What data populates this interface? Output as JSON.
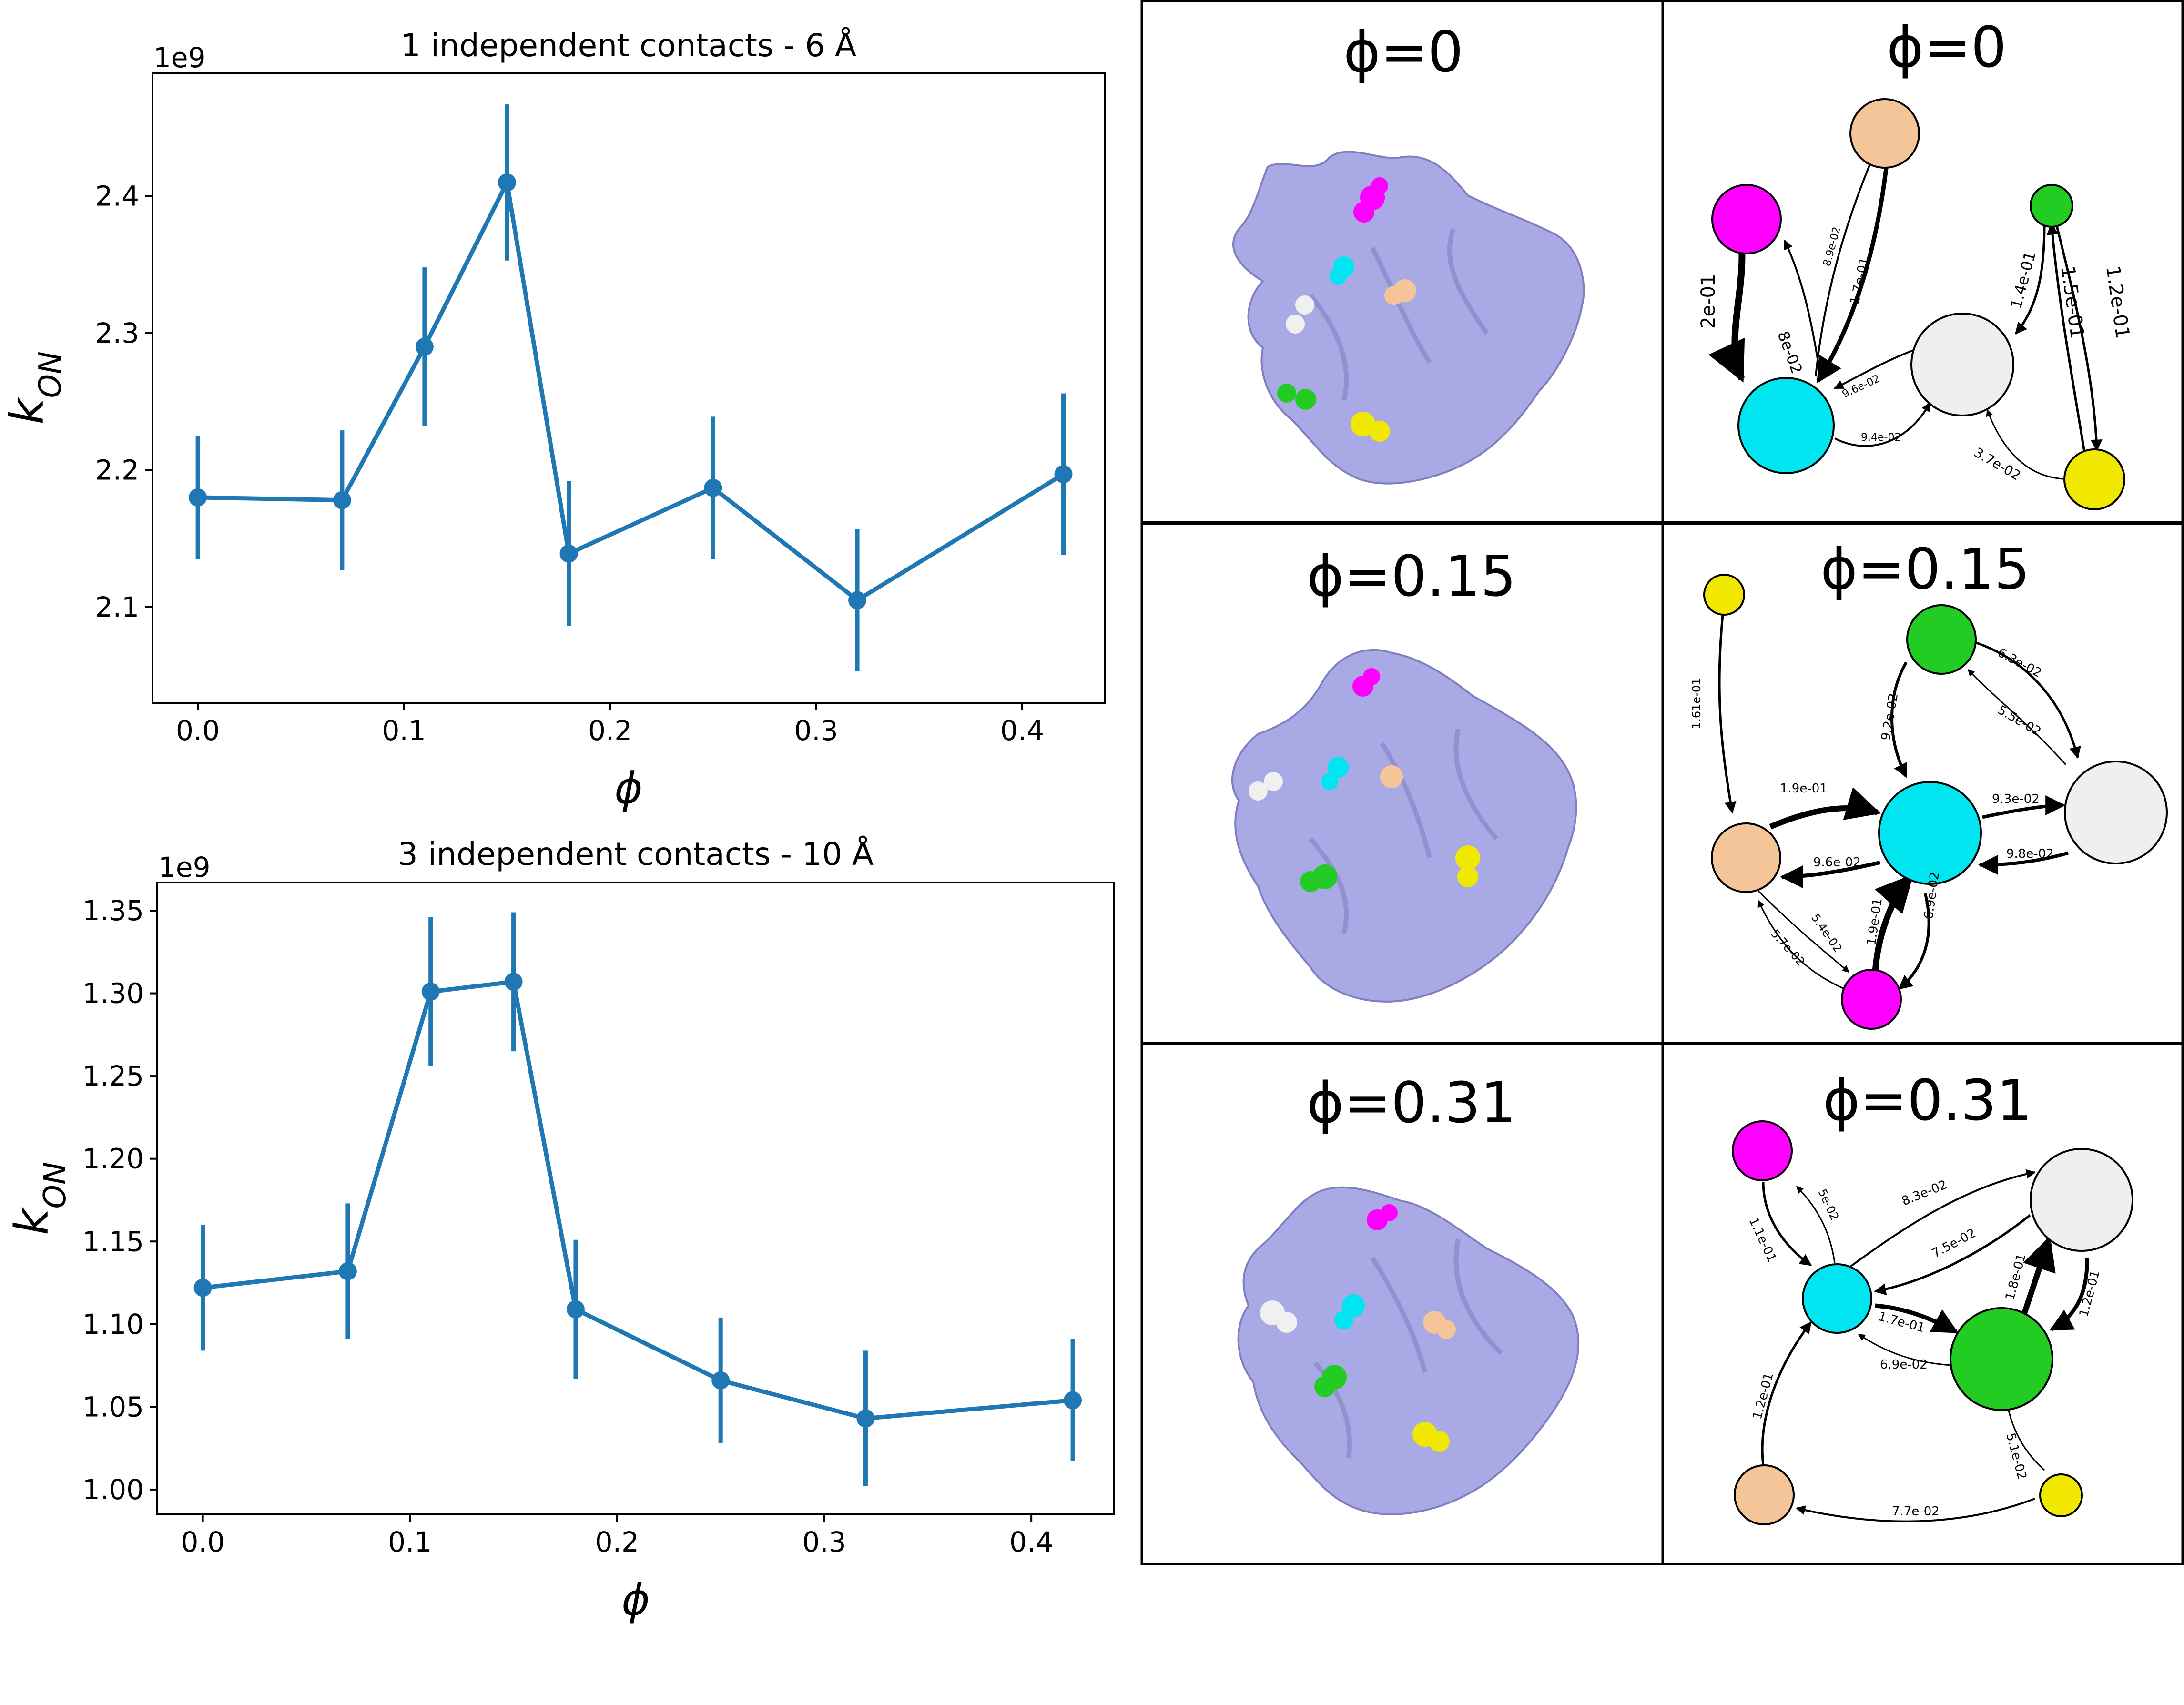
{
  "chart_data": [
    {
      "type": "line",
      "title": "1 independent contacts - 6 Å",
      "xlabel": "ϕ",
      "ylabel": "k_ON",
      "scale_label": "1e9",
      "x": [
        0.0,
        0.07,
        0.11,
        0.15,
        0.18,
        0.25,
        0.32,
        0.42
      ],
      "y": [
        2.18,
        2.178,
        2.29,
        2.41,
        2.139,
        2.187,
        2.105,
        2.197
      ],
      "yerr": [
        0.045,
        0.051,
        0.058,
        0.057,
        0.053,
        0.052,
        0.052,
        0.059
      ],
      "xticks": [
        "0.0",
        "0.1",
        "0.2",
        "0.3",
        "0.4"
      ],
      "yticks": [
        "2.1",
        "2.2",
        "2.3",
        "2.4"
      ],
      "xlim": [
        -0.022,
        0.44
      ],
      "ylim": [
        2.03,
        2.49
      ],
      "color": "#1f77b4",
      "grid": false
    },
    {
      "type": "line",
      "title": "3 independent contacts - 10 Å",
      "xlabel": "ϕ",
      "ylabel": "k_ON",
      "scale_label": "1e9",
      "x": [
        0.0,
        0.07,
        0.11,
        0.15,
        0.18,
        0.25,
        0.32,
        0.42
      ],
      "y": [
        1.122,
        1.132,
        1.301,
        1.307,
        1.109,
        1.066,
        1.043,
        1.054
      ],
      "yerr": [
        0.038,
        0.041,
        0.045,
        0.042,
        0.042,
        0.038,
        0.041,
        0.037
      ],
      "xticks": [
        "0.0",
        "0.1",
        "0.2",
        "0.3",
        "0.4"
      ],
      "yticks": [
        "1.00",
        "1.05",
        "1.10",
        "1.15",
        "1.20",
        "1.25",
        "1.30",
        "1.35"
      ],
      "xlim": [
        -0.022,
        0.44
      ],
      "ylim": [
        0.985,
        1.367
      ],
      "color": "#1f77b4",
      "grid": false
    }
  ],
  "panels": {
    "titles": [
      "ϕ=0",
      "ϕ=0",
      "ϕ=0.15",
      "ϕ=0.15",
      "ϕ=0.31",
      "ϕ=0.31"
    ]
  },
  "protein": {
    "surface_color": "#a9a9e6",
    "residue_colors": {
      "magenta": "#ff00ff",
      "cyan": "#00e5f0",
      "peach": "#f5c59a",
      "white": "#f0f0f0",
      "green": "#22cc22",
      "yellow": "#f0e800"
    }
  },
  "networks": [
    {
      "phase": "ϕ=0",
      "edges": [
        "2e-01",
        "8e-02",
        "8.9e-02",
        "1.7e-01",
        "9.6e-02",
        "9.4e-02",
        "1.4e-01",
        "1.5e-01",
        "1.2e-01",
        "3.7e-02"
      ]
    },
    {
      "phase": "ϕ=0.15",
      "edges": [
        "1.61e-01",
        "9.2e-02",
        "6.3e-02",
        "5.5e-02",
        "1.9e-01",
        "9.6e-02",
        "9.3e-02",
        "9.8e-02",
        "5.4e-02",
        "5.7e-02",
        "1.9e-01",
        "6.9e-02"
      ]
    },
    {
      "phase": "ϕ=0.31",
      "edges": [
        "1.1e-01",
        "5e-02",
        "8.3e-02",
        "7.5e-02",
        "1.7e-01",
        "6.9e-02",
        "1.8e-01",
        "1.2e-01",
        "1.2e-01",
        "5.1e-02",
        "7.7e-02"
      ]
    }
  ]
}
